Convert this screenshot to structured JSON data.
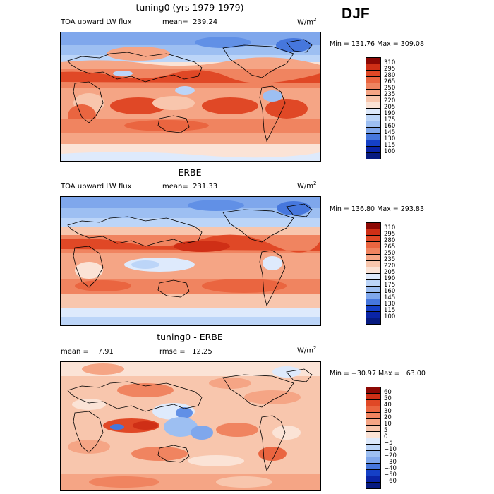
{
  "season": "DJF",
  "colors": {
    "warm": [
      "#fbe3d6",
      "#f8c6ad",
      "#f5a585",
      "#f08460",
      "#ea6540",
      "#e04826",
      "#cf2f16",
      "#b01a0c",
      "#8c0804"
    ],
    "cool": [
      "#deeafc",
      "#bcd5f8",
      "#9dbff2",
      "#7fa7ec",
      "#6190e6",
      "#4677dd",
      "#2a5bd2",
      "#1540c6",
      "#0a24a6",
      "#061a80"
    ]
  },
  "panels": [
    {
      "title": "tuning0 (yrs 1979-1979)",
      "variable": "TOA upward LW flux",
      "stat": "mean=  239.24",
      "stat2": "",
      "units": "W/m",
      "units_exp": "2",
      "minmax": "Min = 131.76 Max = 309.08",
      "levels": [
        "310",
        "295",
        "280",
        "265",
        "250",
        "235",
        "220",
        "205",
        "190",
        "175",
        "160",
        "145",
        "130",
        "115",
        "100"
      ],
      "level_colors": [
        "#8c0804",
        "#cf2f16",
        "#e04826",
        "#ea6540",
        "#f08460",
        "#f5a585",
        "#f8c6ad",
        "#fbe3d6",
        "#deeafc",
        "#bcd5f8",
        "#9dbff2",
        "#7fa7ec",
        "#4677dd",
        "#1540c6",
        "#0a24a6",
        "#061a80"
      ]
    },
    {
      "title": "ERBE",
      "variable": "TOA upward LW flux",
      "stat": "mean=  231.33",
      "stat2": "",
      "units": "W/m",
      "units_exp": "2",
      "minmax": "Min = 136.80 Max = 293.83",
      "levels": [
        "310",
        "295",
        "280",
        "265",
        "250",
        "235",
        "220",
        "205",
        "190",
        "175",
        "160",
        "145",
        "130",
        "115",
        "100"
      ],
      "level_colors": [
        "#8c0804",
        "#cf2f16",
        "#e04826",
        "#ea6540",
        "#f08460",
        "#f5a585",
        "#f8c6ad",
        "#fbe3d6",
        "#deeafc",
        "#bcd5f8",
        "#9dbff2",
        "#7fa7ec",
        "#4677dd",
        "#1540c6",
        "#0a24a6",
        "#061a80"
      ]
    },
    {
      "title": "tuning0 - ERBE",
      "variable": "mean =    7.91",
      "stat": "rmse =   12.25",
      "stat2": "",
      "units": "W/m",
      "units_exp": "2",
      "minmax": "Min = −30.97 Max =   63.00",
      "levels": [
        "60",
        "50",
        "40",
        "30",
        "20",
        "10",
        "5",
        "0",
        "−5",
        "−10",
        "−20",
        "−30",
        "−40",
        "−50",
        "−60"
      ],
      "level_colors": [
        "#8c0804",
        "#cf2f16",
        "#e04826",
        "#ea6540",
        "#f08460",
        "#f5a585",
        "#f8c6ad",
        "#fbe3d6",
        "#deeafc",
        "#bcd5f8",
        "#9dbff2",
        "#7fa7ec",
        "#4677dd",
        "#1540c6",
        "#0a24a6",
        "#061a80"
      ]
    }
  ]
}
